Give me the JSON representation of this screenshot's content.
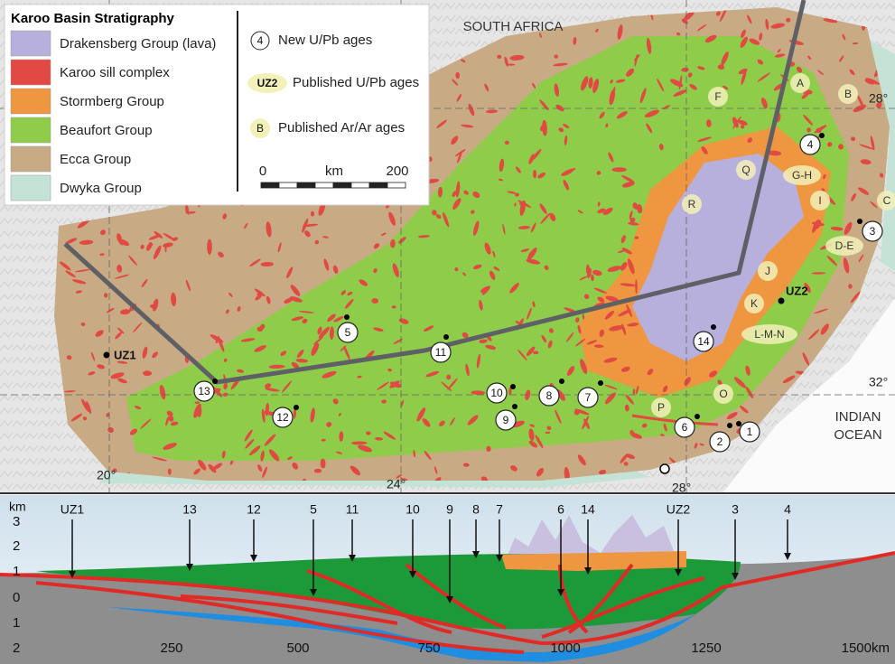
{
  "legend": {
    "title": "Karoo Basin Stratigraphy",
    "items": [
      {
        "label": "Drakensberg Group (lava)",
        "color": "#b8b0dc"
      },
      {
        "label": "Karoo sill complex",
        "color": "#e04a42"
      },
      {
        "label": "Stormberg Group",
        "color": "#ee9640"
      },
      {
        "label": "Beaufort Group",
        "color": "#8fcc4a"
      },
      {
        "label": "Ecca Group",
        "color": "#c8ab84"
      },
      {
        "label": "Dwyka Group",
        "color": "#c4e2d6"
      }
    ],
    "symbols": [
      {
        "marker": "4",
        "label": "New U/Pb ages"
      },
      {
        "marker": "UZ2",
        "label": "Published U/Pb ages"
      },
      {
        "marker": "B",
        "label": "Published Ar/Ar ages"
      }
    ],
    "scale": {
      "start": "0",
      "unit": "km",
      "end": "200"
    }
  },
  "map": {
    "country": "SOUTH AFRICA",
    "ocean": [
      "INDIAN",
      "OCEAN"
    ],
    "graticule": [
      "20°",
      "24°",
      "28°",
      "28°",
      "32°"
    ],
    "new_ages": [
      "1",
      "2",
      "3",
      "4",
      "5",
      "6",
      "7",
      "8",
      "9",
      "10",
      "11",
      "12",
      "13",
      "14"
    ],
    "published_upb": [
      "UZ1",
      "UZ2"
    ],
    "ar_ar": [
      "A",
      "B",
      "C",
      "D-E",
      "F",
      "G-H",
      "I",
      "J",
      "K",
      "L-M-N",
      "O",
      "P",
      "Q",
      "R"
    ]
  },
  "section": {
    "unit": "km",
    "depth_labels": [
      "3",
      "2",
      "1",
      "0",
      "1",
      "2"
    ],
    "distance_labels": [
      "250",
      "500",
      "750",
      "1000",
      "1250",
      "1500km"
    ],
    "sites": [
      "UZ1",
      "13",
      "12",
      "5",
      "11",
      "10",
      "9",
      "8",
      "7",
      "6",
      "14",
      "UZ2",
      "3",
      "4"
    ]
  }
}
